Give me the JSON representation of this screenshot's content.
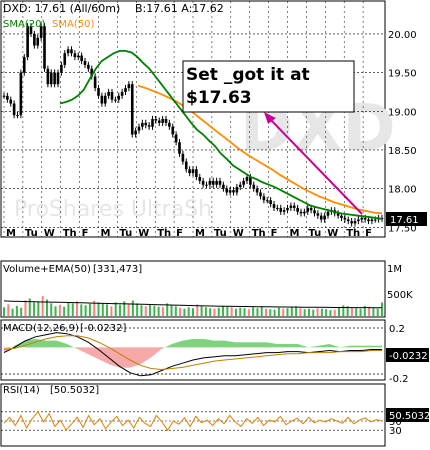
{
  "header": {
    "symbol_line": "DXD: 17.61 (All/60m)",
    "bid_line": "B:17.61 A:17.62"
  },
  "chart_data": [
    {
      "type": "candlestick",
      "title": "DXD: 17.61 (All/60m)",
      "watermark_symbol": "DXD",
      "watermark_name": "ProShares UltraSh",
      "ylim": [
        17.4,
        20.4
      ],
      "yticks": [
        "20.00",
        "19.50",
        "19.00",
        "18.50",
        "18.00",
        "17.50"
      ],
      "x_day_labels": [
        "M",
        "Tu",
        "W",
        "Th",
        "F",
        "M",
        "Tu",
        "W",
        "Th",
        "F",
        "M",
        "Tu",
        "W",
        "Th",
        "F",
        "M",
        "Tu",
        "W",
        "Th",
        "F"
      ],
      "last_price_label": "17.61",
      "legend": [
        {
          "label": "SMA(20)",
          "color": "#008000"
        },
        {
          "label": "SMA(50)",
          "color": "#ff8c00"
        }
      ],
      "candle_color": "#000000",
      "price": [
        19.2,
        19.15,
        19.1,
        18.95,
        18.95,
        19.5,
        19.7,
        20.1,
        20.0,
        19.85,
        19.95,
        20.1,
        19.55,
        19.35,
        19.5,
        19.35,
        19.5,
        19.6,
        19.75,
        19.8,
        19.75,
        19.7,
        19.72,
        19.65,
        19.6,
        19.55,
        19.45,
        19.3,
        19.2,
        19.1,
        19.2,
        19.25,
        19.15,
        19.15,
        19.2,
        19.25,
        19.3,
        19.35,
        18.7,
        18.75,
        18.8,
        18.85,
        18.82,
        18.8,
        18.9,
        18.88,
        18.85,
        18.9,
        18.85,
        18.8,
        18.7,
        18.6,
        18.45,
        18.35,
        18.25,
        18.2,
        18.25,
        18.15,
        18.1,
        18.05,
        18.05,
        18.1,
        18.05,
        18.1,
        18.05,
        18.0,
        17.95,
        17.98,
        17.95,
        18.02,
        18.05,
        18.1,
        18.15,
        18.05,
        18.0,
        17.95,
        17.9,
        17.85,
        17.85,
        17.8,
        17.75,
        17.75,
        17.7,
        17.72,
        17.75,
        17.78,
        17.75,
        17.7,
        17.68,
        17.7,
        17.75,
        17.72,
        17.68,
        17.65,
        17.6,
        17.65,
        17.7,
        17.72,
        17.68,
        17.65,
        17.62,
        17.6,
        17.58,
        17.55,
        17.58,
        17.6,
        17.62,
        17.6,
        17.58,
        17.6,
        17.6,
        17.62,
        17.61
      ],
      "sma20": [
        19.1,
        19.12,
        19.15,
        19.2,
        19.28,
        19.42,
        19.55,
        19.65,
        19.7,
        19.75,
        19.78,
        19.78,
        19.76,
        19.7,
        19.62,
        19.55,
        19.45,
        19.35,
        19.25,
        19.15,
        19.05,
        18.95,
        18.85,
        18.76,
        18.7,
        18.62,
        18.55,
        18.45,
        18.38,
        18.3,
        18.25,
        18.2,
        18.15,
        18.12,
        18.08,
        18.05,
        18.02,
        17.98,
        17.94,
        17.9,
        17.86,
        17.82,
        17.78,
        17.76,
        17.74,
        17.72,
        17.7,
        17.68,
        17.67,
        17.66,
        17.65,
        17.64,
        17.63,
        17.62,
        17.61
      ],
      "sma50": [
        19.33,
        19.3,
        19.26,
        19.22,
        19.17,
        19.12,
        19.05,
        18.98,
        18.9,
        18.82,
        18.74,
        18.66,
        18.58,
        18.5,
        18.43,
        18.37,
        18.31,
        18.25,
        18.18,
        18.12,
        18.06,
        18.0,
        17.95,
        17.9,
        17.86,
        17.82,
        17.79,
        17.76,
        17.73,
        17.71,
        17.69,
        17.68
      ],
      "annotation": {
        "text_line1": "Set _got it at",
        "text_line2": "$17.63",
        "arrow_color": "#cc0099"
      }
    },
    {
      "type": "bar",
      "title": "Volume+EMA(50)",
      "value_label": "[331,473]",
      "yticks": [
        "1M",
        "500K"
      ],
      "up_color": "#3cb44b",
      "down_color": "#ff8080",
      "values": [
        180,
        240,
        150,
        210,
        170,
        320,
        360,
        280,
        300,
        410,
        340,
        260,
        200,
        230,
        190,
        280,
        260,
        300,
        240,
        220,
        250,
        310,
        280,
        260,
        240,
        200,
        280,
        230,
        300,
        250,
        320,
        260,
        220,
        200,
        240,
        210,
        190,
        180,
        260,
        220,
        200,
        170,
        150,
        180,
        160,
        240,
        200,
        180,
        160,
        150,
        170,
        210,
        190,
        180,
        150,
        170,
        160,
        140,
        180,
        160,
        200,
        150,
        140,
        130,
        170,
        150,
        160,
        180,
        200,
        160,
        140,
        150,
        130,
        160,
        150,
        140,
        120,
        130,
        180,
        220,
        200,
        170,
        160,
        150,
        210,
        190,
        160,
        150,
        280
      ],
      "ema": [
        310,
        305,
        300,
        296,
        292,
        288,
        285,
        282,
        279,
        276,
        272,
        268,
        264,
        260,
        256,
        252,
        248,
        244,
        240,
        236,
        232,
        228,
        224,
        220,
        216,
        212,
        208,
        205,
        202,
        200,
        198,
        196,
        194,
        192,
        190,
        188,
        186,
        185,
        184,
        182,
        180,
        178,
        176,
        175,
        174,
        173,
        172,
        172,
        171,
        170
      ]
    },
    {
      "type": "area",
      "title": "MACD(12,26,9)",
      "value_label": "[-0.0232]",
      "last_value_label": "-0.0232",
      "yticks": [
        "0.2",
        "-0.2"
      ],
      "ylim": [
        -0.3,
        0.25
      ],
      "hist_pos_color": "#7ed47e",
      "hist_neg_color": "#f5a9a9",
      "macd": [
        -0.05,
        0.0,
        0.06,
        0.1,
        0.12,
        0.14,
        0.13,
        0.1,
        0.05,
        -0.02,
        -0.1,
        -0.18,
        -0.24,
        -0.27,
        -0.26,
        -0.22,
        -0.18,
        -0.15,
        -0.12,
        -0.1,
        -0.09,
        -0.08,
        -0.08,
        -0.07,
        -0.06,
        -0.05,
        -0.05,
        -0.04,
        -0.04,
        -0.05,
        -0.04,
        -0.03,
        -0.04,
        -0.03,
        -0.03,
        -0.02,
        -0.02
      ],
      "signal": [
        -0.02,
        -0.01,
        0.02,
        0.05,
        0.08,
        0.1,
        0.11,
        0.11,
        0.09,
        0.05,
        0.0,
        -0.06,
        -0.12,
        -0.17,
        -0.2,
        -0.21,
        -0.2,
        -0.19,
        -0.17,
        -0.15,
        -0.13,
        -0.12,
        -0.11,
        -0.1,
        -0.09,
        -0.08,
        -0.07,
        -0.06,
        -0.06,
        -0.05,
        -0.05,
        -0.05,
        -0.04,
        -0.04,
        -0.04,
        -0.03,
        -0.03
      ]
    },
    {
      "type": "line",
      "title": "RSI(14)",
      "value_label": "[50.5032]",
      "last_value_label": "50.5032",
      "yticks": [
        "70",
        "50",
        "30"
      ],
      "ylim": [
        0,
        100
      ],
      "line_color": "#e08000",
      "values": [
        45,
        58,
        40,
        62,
        35,
        55,
        70,
        48,
        66,
        38,
        52,
        30,
        44,
        58,
        36,
        62,
        42,
        55,
        33,
        48,
        60,
        40,
        52,
        35,
        58,
        45,
        38,
        62,
        48,
        30,
        50,
        43,
        57,
        38,
        60,
        46,
        52,
        40,
        55,
        44,
        62,
        48,
        38,
        55,
        45,
        58,
        40,
        52,
        48,
        60,
        42,
        50,
        56,
        44,
        58,
        46,
        52,
        48,
        55,
        50,
        45,
        58,
        44,
        52,
        57,
        48,
        53,
        50
      ]
    }
  ]
}
